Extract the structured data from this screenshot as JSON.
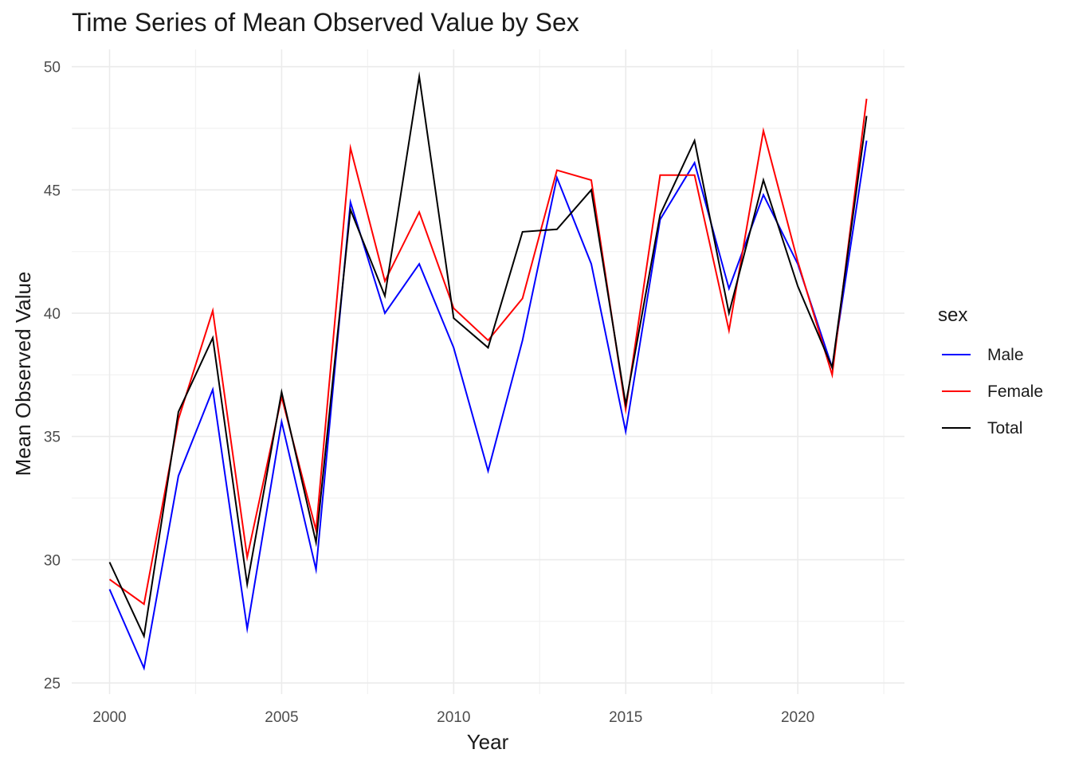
{
  "chart_data": {
    "type": "line",
    "title": "Time Series of Mean Observed Value by Sex",
    "xlabel": "Year",
    "ylabel": "Mean Observed Value",
    "x": [
      2000,
      2001,
      2002,
      2003,
      2004,
      2005,
      2006,
      2007,
      2008,
      2009,
      2010,
      2011,
      2012,
      2013,
      2014,
      2015,
      2016,
      2017,
      2018,
      2019,
      2020,
      2021,
      2022
    ],
    "xlim": [
      1998.9,
      2023.1
    ],
    "ylim": [
      24.55,
      50.7
    ],
    "xticks": [
      2000,
      2005,
      2010,
      2015,
      2020
    ],
    "xtick_labels": [
      "2000",
      "2005",
      "2010",
      "2015",
      "2020"
    ],
    "yticks": [
      25,
      30,
      35,
      40,
      45,
      50
    ],
    "ytick_labels": [
      "25",
      "30",
      "35",
      "40",
      "45",
      "50"
    ],
    "grid": true,
    "legend": {
      "title": "sex",
      "position": "right",
      "entries": [
        "Male",
        "Female",
        "Total"
      ]
    },
    "series": [
      {
        "name": "Male",
        "color": "#0000ff",
        "values": [
          28.8,
          25.6,
          33.4,
          36.9,
          27.2,
          35.6,
          29.6,
          44.5,
          40.0,
          42.0,
          38.6,
          33.6,
          38.9,
          45.5,
          42.0,
          35.2,
          43.8,
          46.1,
          41.0,
          44.8,
          42.0,
          37.8,
          47.0
        ]
      },
      {
        "name": "Female",
        "color": "#ff0000",
        "values": [
          29.2,
          28.2,
          35.7,
          40.1,
          30.1,
          36.6,
          31.2,
          46.7,
          41.3,
          44.1,
          40.2,
          38.9,
          40.6,
          45.8,
          45.4,
          36.1,
          45.6,
          45.6,
          39.3,
          47.4,
          42.1,
          37.5,
          48.7
        ]
      },
      {
        "name": "Total",
        "color": "#000000",
        "values": [
          29.9,
          26.9,
          36.0,
          39.0,
          29.0,
          36.8,
          30.7,
          44.2,
          40.7,
          49.6,
          39.8,
          38.6,
          43.3,
          43.4,
          45.0,
          36.3,
          44.0,
          47.0,
          40.0,
          45.4,
          41.1,
          37.8,
          48.0
        ]
      }
    ]
  }
}
